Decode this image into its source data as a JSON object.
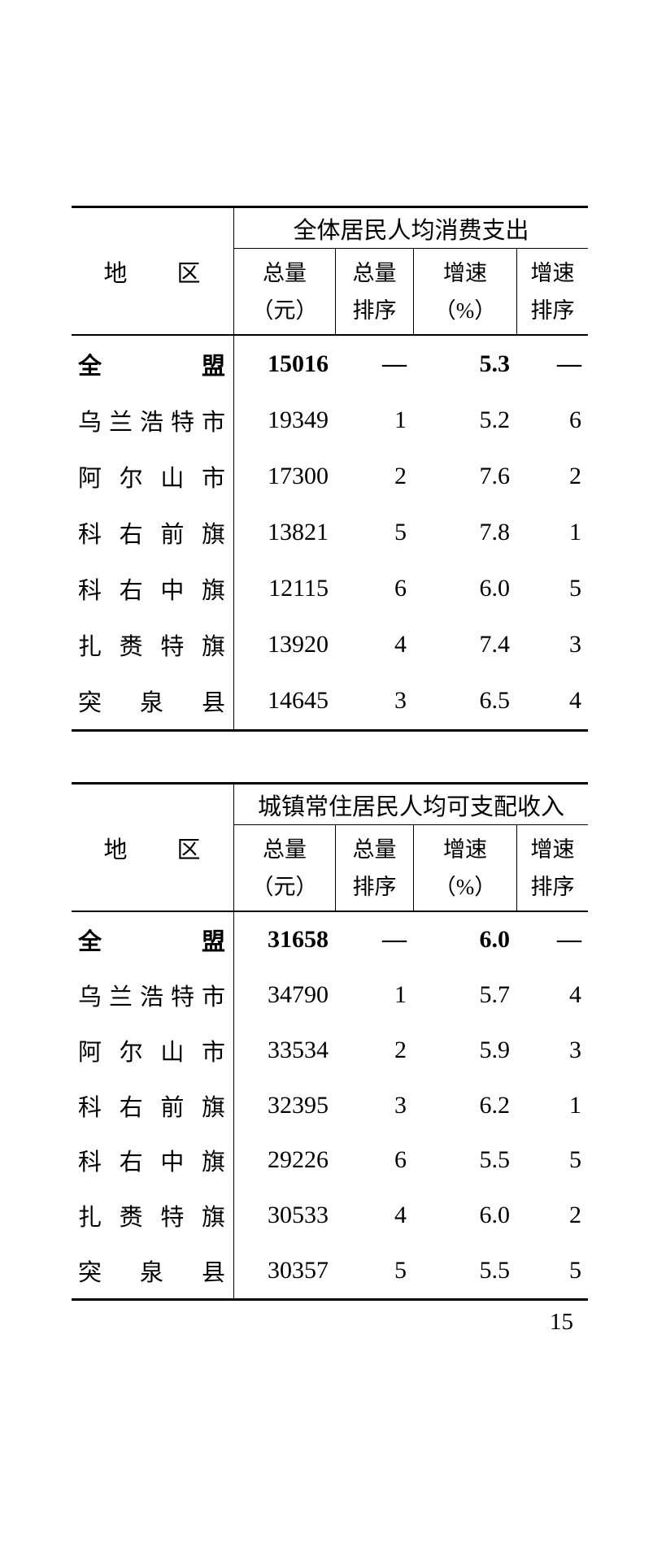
{
  "page": {
    "number": "15"
  },
  "tables": [
    {
      "spanner": "全体居民人均消费支出",
      "region_header": "地　　区",
      "col_headers": [
        {
          "l1": "总量",
          "l2": "（元）"
        },
        {
          "l1": "总量",
          "l2": "排序"
        },
        {
          "l1": "增速",
          "l2": "（%）"
        },
        {
          "l1": "增速",
          "l2": "排序"
        }
      ],
      "rows": [
        {
          "region": "全盟",
          "bold": true,
          "total": "15016",
          "total_rank": "—",
          "growth": "5.3",
          "growth_rank": "—"
        },
        {
          "region": "乌兰浩特市",
          "bold": false,
          "total": "19349",
          "total_rank": "1",
          "growth": "5.2",
          "growth_rank": "6"
        },
        {
          "region": "阿尔山市",
          "bold": false,
          "total": "17300",
          "total_rank": "2",
          "growth": "7.6",
          "growth_rank": "2"
        },
        {
          "region": "科右前旗",
          "bold": false,
          "total": "13821",
          "total_rank": "5",
          "growth": "7.8",
          "growth_rank": "1"
        },
        {
          "region": "科右中旗",
          "bold": false,
          "total": "12115",
          "total_rank": "6",
          "growth": "6.0",
          "growth_rank": "5"
        },
        {
          "region": "扎赉特旗",
          "bold": false,
          "total": "13920",
          "total_rank": "4",
          "growth": "7.4",
          "growth_rank": "3"
        },
        {
          "region": "突泉县",
          "bold": false,
          "total": "14645",
          "total_rank": "3",
          "growth": "6.5",
          "growth_rank": "4"
        }
      ]
    },
    {
      "spanner": "城镇常住居民人均可支配收入",
      "region_header": "地　　区",
      "col_headers": [
        {
          "l1": "总量",
          "l2": "（元）"
        },
        {
          "l1": "总量",
          "l2": "排序"
        },
        {
          "l1": "增速",
          "l2": "（%）"
        },
        {
          "l1": "增速",
          "l2": "排序"
        }
      ],
      "rows": [
        {
          "region": "全盟",
          "bold": true,
          "total": "31658",
          "total_rank": "—",
          "growth": "6.0",
          "growth_rank": "—"
        },
        {
          "region": "乌兰浩特市",
          "bold": false,
          "total": "34790",
          "total_rank": "1",
          "growth": "5.7",
          "growth_rank": "4"
        },
        {
          "region": "阿尔山市",
          "bold": false,
          "total": "33534",
          "total_rank": "2",
          "growth": "5.9",
          "growth_rank": "3"
        },
        {
          "region": "科右前旗",
          "bold": false,
          "total": "32395",
          "total_rank": "3",
          "growth": "6.2",
          "growth_rank": "1"
        },
        {
          "region": "科右中旗",
          "bold": false,
          "total": "29226",
          "total_rank": "6",
          "growth": "5.5",
          "growth_rank": "5"
        },
        {
          "region": "扎赉特旗",
          "bold": false,
          "total": "30533",
          "total_rank": "4",
          "growth": "6.0",
          "growth_rank": "2"
        },
        {
          "region": "突泉县",
          "bold": false,
          "total": "30357",
          "total_rank": "5",
          "growth": "5.5",
          "growth_rank": "5"
        }
      ]
    }
  ]
}
